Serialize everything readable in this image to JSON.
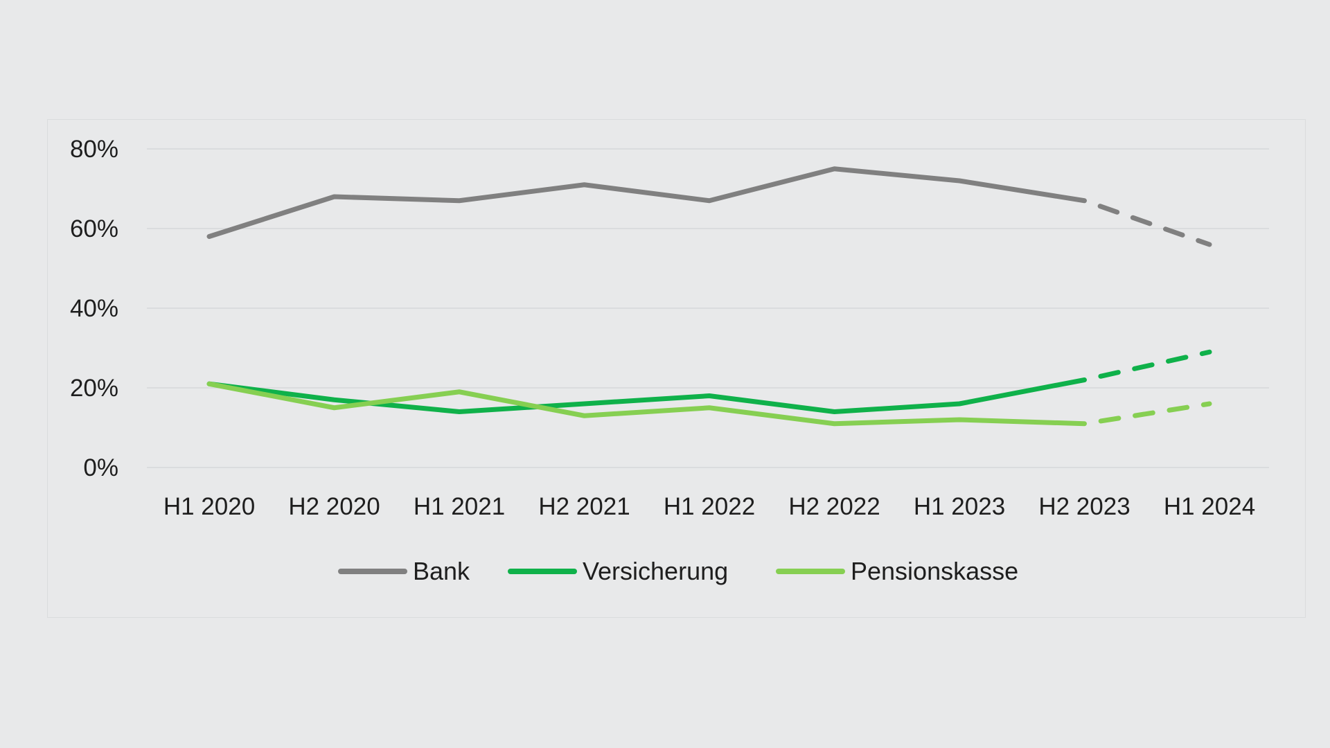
{
  "chart_data": {
    "type": "line",
    "title": "",
    "xlabel": "",
    "ylabel": "",
    "categories": [
      "H1 2020",
      "H2 2020",
      "H1 2021",
      "H2 2021",
      "H1 2022",
      "H2 2022",
      "H1 2023",
      "H2 2023",
      "H1 2024"
    ],
    "y_ticks": [
      "0%",
      "20%",
      "40%",
      "60%",
      "80%"
    ],
    "y_tick_values": [
      0,
      20,
      40,
      60,
      80
    ],
    "ylim": [
      0,
      80
    ],
    "grid": true,
    "legend_position": "bottom",
    "projection_from_category": "H2 2023",
    "projection_style": "dashed",
    "series": [
      {
        "name": "Bank",
        "color": "#808080",
        "values": [
          58,
          68,
          67,
          71,
          67,
          75,
          72,
          67,
          56
        ]
      },
      {
        "name": "Versicherung",
        "color": "#0fb14a",
        "values": [
          21,
          17,
          14,
          16,
          18,
          14,
          16,
          22,
          29
        ]
      },
      {
        "name": "Pensionskasse",
        "color": "#86cf52",
        "values": [
          21,
          15,
          19,
          13,
          15,
          11,
          12,
          11,
          16
        ]
      }
    ]
  }
}
